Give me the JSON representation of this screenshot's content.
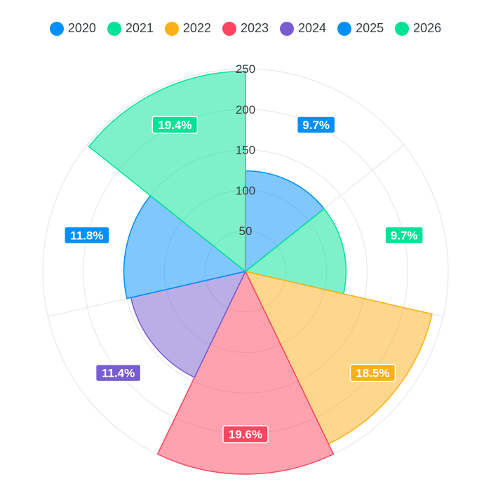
{
  "chart_data": {
    "type": "polarArea",
    "categories": [
      "2020",
      "2021",
      "2022",
      "2023",
      "2024",
      "2025",
      "2026"
    ],
    "values": [
      124,
      124,
      236,
      250,
      145,
      150,
      247
    ],
    "data_labels": [
      "9.7%",
      "9.7%",
      "18.5%",
      "19.6%",
      "11.4%",
      "11.8%",
      "19.4%"
    ],
    "colors": [
      "#008FFB",
      "#00E396",
      "#FEB019",
      "#FF4560",
      "#775DD0",
      "#008FFB",
      "#00E396"
    ],
    "radial_ticks": [
      "50",
      "100",
      "150",
      "200",
      "250"
    ],
    "radial_tick_values": [
      50,
      100,
      150,
      200,
      250
    ],
    "rmax": 250,
    "legend_position": "top",
    "grid": true
  }
}
